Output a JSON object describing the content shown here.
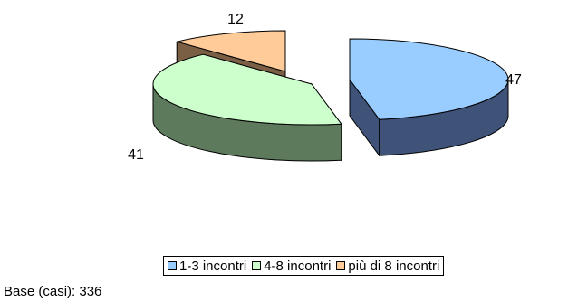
{
  "chart_data": {
    "type": "pie",
    "categories": [
      "1-3 incontri",
      "4-8 incontri",
      "più di 8 incontri"
    ],
    "values": [
      47,
      41,
      12
    ],
    "data_labels": [
      "47",
      "41",
      "12"
    ],
    "colors": [
      "#99CCFF",
      "#CCFFCC",
      "#FFCC99"
    ],
    "side_colors": [
      "#3F5379",
      "#5D7A5D",
      "#7A5F45"
    ],
    "style": "3d-exploded",
    "legend_position": "bottom-right",
    "title": ""
  },
  "base_note": "Base (casi): 336"
}
